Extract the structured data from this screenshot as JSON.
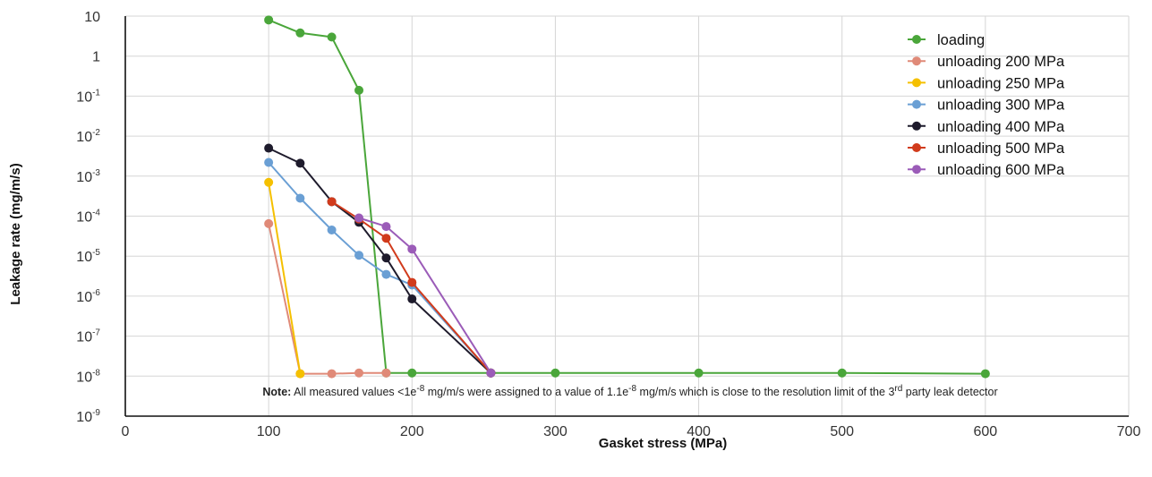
{
  "chart_data": {
    "type": "line",
    "xlabel": "Gasket stress (MPa)",
    "ylabel": "Leakage rate (mg/m/s)",
    "xlim": [
      0,
      700
    ],
    "x_ticks": [
      0,
      100,
      200,
      300,
      400,
      500,
      600,
      700
    ],
    "y_scale": "log",
    "ylim": [
      1e-09,
      10
    ],
    "y_ticks": [
      {
        "base": "10",
        "exp": ""
      },
      {
        "base": "1",
        "exp": ""
      },
      {
        "base": "10",
        "exp": "-1"
      },
      {
        "base": "10",
        "exp": "-2"
      },
      {
        "base": "10",
        "exp": "-3"
      },
      {
        "base": "10",
        "exp": "-4"
      },
      {
        "base": "10",
        "exp": "-5"
      },
      {
        "base": "10",
        "exp": "-6"
      },
      {
        "base": "10",
        "exp": "-7"
      },
      {
        "base": "10",
        "exp": "-8"
      },
      {
        "base": "10",
        "exp": "-9"
      }
    ],
    "grid": true,
    "legend_position": "top-right",
    "series": [
      {
        "name": "loading",
        "color": "#4aa63a",
        "x": [
          100,
          122,
          144,
          163,
          182,
          200,
          255,
          300,
          400,
          500,
          600
        ],
        "y": [
          8,
          3.8,
          3,
          0.14,
          1.2e-08,
          1.2e-08,
          1.2e-08,
          1.2e-08,
          1.2e-08,
          1.2e-08,
          1.15e-08
        ]
      },
      {
        "name": "unloading 200 MPa",
        "color": "#e08a78",
        "x": [
          100,
          122,
          144,
          163,
          182
        ],
        "y": [
          6.5e-05,
          1.15e-08,
          1.15e-08,
          1.2e-08,
          1.2e-08
        ]
      },
      {
        "name": "unloading 250 MPa",
        "color": "#f5c000",
        "x": [
          100,
          122
        ],
        "y": [
          0.0007,
          1.15e-08
        ]
      },
      {
        "name": "unloading 300 MPa",
        "color": "#6a9fd4",
        "x": [
          100,
          122,
          144,
          163,
          182,
          200,
          255
        ],
        "y": [
          0.0022,
          0.00028,
          4.5e-05,
          1.05e-05,
          3.5e-06,
          1.9e-06,
          1.2e-08
        ]
      },
      {
        "name": "unloading 400 MPa",
        "color": "#1e1b2c",
        "x": [
          100,
          122,
          144,
          163,
          182,
          200,
          255
        ],
        "y": [
          0.005,
          0.0021,
          0.00023,
          7e-05,
          9e-06,
          8.5e-07,
          1.2e-08
        ]
      },
      {
        "name": "unloading 500 MPa",
        "color": "#d13b1c",
        "x": [
          144,
          163,
          182,
          200,
          255
        ],
        "y": [
          0.00023,
          8.5e-05,
          2.8e-05,
          2.2e-06,
          1.2e-08
        ]
      },
      {
        "name": "unloading 600 MPa",
        "color": "#9b5cb8",
        "x": [
          163,
          182,
          200,
          255
        ],
        "y": [
          9e-05,
          5.5e-05,
          1.5e-05,
          1.2e-08
        ]
      }
    ],
    "note": {
      "label": "Note:",
      "text_1": " All measured values <1e",
      "sup_1": "-8",
      "text_2": " mg/m/s were assigned to a value of 1.1e",
      "sup_2": "-8",
      "text_3": " mg/m/s which is close to the resolution limit of the 3",
      "sup_3": "rd",
      "text_4": " party leak detector"
    }
  }
}
